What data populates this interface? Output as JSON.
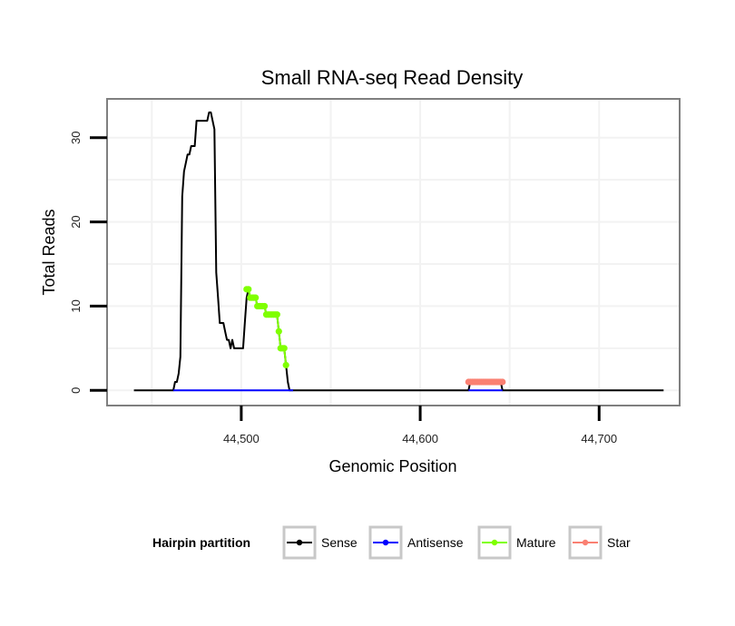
{
  "chart_data": {
    "type": "line",
    "title": "Small RNA-seq Read Density",
    "xlabel": "Genomic Position",
    "ylabel": "Total Reads",
    "xlim": [
      44425,
      44745
    ],
    "ylim": [
      -1.8,
      34.6
    ],
    "x_ticks": [
      44500,
      44600,
      44700
    ],
    "x_tick_labels": [
      "44,500",
      "44,600",
      "44,700"
    ],
    "y_ticks": [
      0,
      10,
      20,
      30
    ],
    "y_tick_labels": [
      "0",
      "10",
      "20",
      "30"
    ],
    "grid": true,
    "legend_position": "bottom",
    "legend_title": "Hairpin partition",
    "series": [
      {
        "name": "Sense",
        "color": "#000000",
        "style": "line",
        "x": [
          44440,
          44462,
          44463,
          44464,
          44465,
          44466,
          44467,
          44468,
          44469,
          44470,
          44471,
          44472,
          44473,
          44474,
          44475,
          44476,
          44477,
          44478,
          44479,
          44480,
          44481,
          44482,
          44483,
          44484,
          44485,
          44486,
          44487,
          44488,
          44489,
          44490,
          44491,
          44492,
          44493,
          44494,
          44495,
          44496,
          44497,
          44498,
          44499,
          44500,
          44501,
          44502,
          44503,
          44504,
          44505,
          44506,
          44507,
          44508,
          44509,
          44510,
          44511,
          44512,
          44513,
          44514,
          44515,
          44516,
          44517,
          44518,
          44519,
          44520,
          44521,
          44522,
          44523,
          44524,
          44525,
          44526,
          44527,
          44528,
          44529,
          44627,
          44628,
          44645,
          44646,
          44736
        ],
        "y": [
          0,
          0,
          1,
          1,
          2,
          4,
          23,
          26,
          27,
          28,
          28,
          29,
          29,
          29,
          32,
          32,
          32,
          32,
          32,
          32,
          32,
          33,
          33,
          32,
          31,
          14,
          11,
          8,
          8,
          8,
          7,
          6,
          6,
          5,
          6,
          5,
          5,
          5,
          5,
          5,
          5,
          8,
          11,
          12,
          11,
          11,
          11,
          11,
          10,
          10,
          10,
          10,
          10,
          9,
          9,
          9,
          9,
          9,
          9,
          9,
          7,
          5,
          5,
          5,
          3,
          1,
          0,
          0,
          0,
          0,
          1,
          1,
          0,
          0
        ]
      },
      {
        "name": "Antisense",
        "color": "#0000ff",
        "style": "line",
        "segments": [
          [
            44462,
            44529
          ],
          [
            44627,
            44646
          ]
        ],
        "value": 0
      },
      {
        "name": "Mature",
        "color": "#7fff00",
        "style": "line-points",
        "x": [
          44503,
          44504,
          44505,
          44506,
          44507,
          44508,
          44509,
          44510,
          44511,
          44512,
          44513,
          44514,
          44515,
          44516,
          44517,
          44518,
          44519,
          44520,
          44521,
          44522,
          44523,
          44524,
          44525
        ],
        "y": [
          12,
          12,
          11,
          11,
          11,
          11,
          10,
          10,
          10,
          10,
          10,
          9,
          9,
          9,
          9,
          9,
          9,
          9,
          7,
          5,
          5,
          5,
          3
        ]
      },
      {
        "name": "Star",
        "color": "#fa8072",
        "style": "line-points",
        "x": [
          44627,
          44628,
          44629,
          44630,
          44631,
          44632,
          44633,
          44634,
          44635,
          44636,
          44637,
          44638,
          44639,
          44640,
          44641,
          44642,
          44643,
          44644,
          44645,
          44646
        ],
        "y": [
          1,
          1,
          1,
          1,
          1,
          1,
          1,
          1,
          1,
          1,
          1,
          1,
          1,
          1,
          1,
          1,
          1,
          1,
          1,
          1
        ]
      }
    ]
  }
}
